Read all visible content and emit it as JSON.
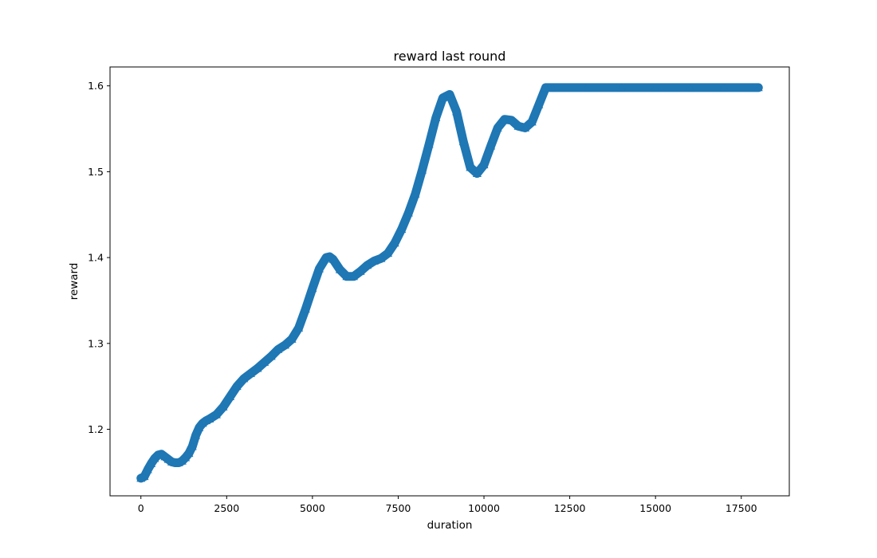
{
  "chart_data": {
    "type": "scatter",
    "title": "reward last round",
    "xlabel": "duration",
    "ylabel": "reward",
    "xlim": [
      -900,
      18900
    ],
    "ylim": [
      1.1225,
      1.622
    ],
    "xticks": [
      0,
      2500,
      5000,
      7500,
      10000,
      12500,
      15000,
      17500
    ],
    "xtick_labels": [
      "0",
      "2500",
      "5000",
      "7500",
      "10000",
      "12500",
      "15000",
      "17500"
    ],
    "yticks": [
      1.2,
      1.3,
      1.4,
      1.5,
      1.6
    ],
    "ytick_labels": [
      "1.2",
      "1.3",
      "1.4",
      "1.5",
      "1.6"
    ],
    "grid": false,
    "marker": "triangle-up",
    "color": "#1f77b4",
    "series": [
      {
        "x": [
          0,
          100,
          200,
          300,
          400,
          500,
          600,
          700,
          800,
          900,
          1000,
          1100,
          1200,
          1300,
          1400,
          1500,
          1600,
          1700,
          1800,
          1900,
          2000,
          2200,
          2400,
          2600,
          2800,
          3000,
          3200,
          3400,
          3600,
          3800,
          4000,
          4200,
          4400,
          4600,
          4800,
          5000,
          5200,
          5400,
          5500,
          5600,
          5800,
          6000,
          6200,
          6400,
          6600,
          6800,
          7000,
          7200,
          7400,
          7600,
          7800,
          8000,
          8200,
          8400,
          8600,
          8800,
          9000,
          9200,
          9400,
          9600,
          9800,
          10000,
          10200,
          10400,
          10600,
          10800,
          11000,
          11200,
          11400,
          11600,
          11800,
          12000,
          13000,
          14000,
          15000,
          16000,
          17000,
          18000
        ],
        "y": [
          1.143,
          1.145,
          1.153,
          1.16,
          1.166,
          1.17,
          1.171,
          1.168,
          1.165,
          1.162,
          1.161,
          1.161,
          1.163,
          1.167,
          1.172,
          1.18,
          1.193,
          1.202,
          1.207,
          1.21,
          1.212,
          1.217,
          1.226,
          1.238,
          1.25,
          1.259,
          1.265,
          1.271,
          1.278,
          1.285,
          1.293,
          1.298,
          1.305,
          1.318,
          1.34,
          1.364,
          1.387,
          1.4,
          1.401,
          1.398,
          1.386,
          1.378,
          1.378,
          1.384,
          1.391,
          1.396,
          1.399,
          1.405,
          1.417,
          1.433,
          1.452,
          1.474,
          1.502,
          1.532,
          1.563,
          1.586,
          1.59,
          1.57,
          1.535,
          1.505,
          1.498,
          1.508,
          1.53,
          1.551,
          1.561,
          1.56,
          1.553,
          1.551,
          1.558,
          1.578,
          1.598,
          1.598,
          1.598,
          1.598,
          1.598,
          1.598,
          1.598,
          1.598
        ]
      }
    ]
  }
}
